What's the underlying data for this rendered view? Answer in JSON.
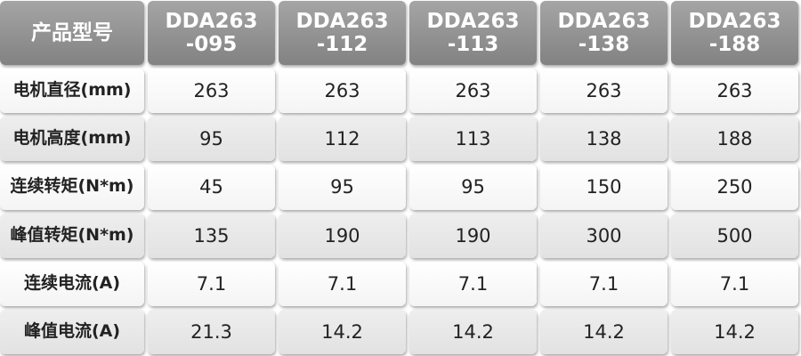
{
  "table": {
    "header": [
      "产品型号",
      "DDA263\n-095",
      "DDA263\n-112",
      "DDA263\n-113",
      "DDA263\n-138",
      "DDA263\n-188"
    ],
    "rows": [
      [
        "电机直径(mm)",
        "263",
        "263",
        "263",
        "263",
        "263"
      ],
      [
        "电机高度(mm)",
        "95",
        "112",
        "113",
        "138",
        "188"
      ],
      [
        "连续转矩(N*m)",
        "45",
        "95",
        "95",
        "150",
        "250"
      ],
      [
        "峰值转矩(N*m)",
        "135",
        "190",
        "190",
        "300",
        "500"
      ],
      [
        "连续电流(A)",
        "7.1",
        "7.1",
        "7.1",
        "7.1",
        "7.1"
      ],
      [
        "峰值电流(A)",
        "21.3",
        "14.2",
        "14.2",
        "14.2",
        "14.2"
      ]
    ]
  }
}
